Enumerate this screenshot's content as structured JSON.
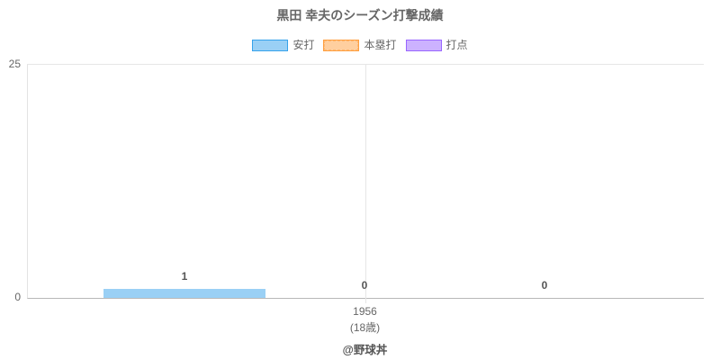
{
  "title": "黒田 幸夫のシーズン打撃成績",
  "footer": "@野球丼",
  "colors": {
    "title_text": "#666666",
    "axis_text": "#666666",
    "data_label_text": "#555555",
    "gridline": "#e6e6e6",
    "axis_line": "#b8b8b8",
    "background": "#ffffff"
  },
  "chart_data": {
    "type": "bar",
    "title": "黒田 幸夫のシーズン打撃成績",
    "categories": [
      "1956"
    ],
    "category_sublabels": [
      "(18歳)"
    ],
    "series": [
      {
        "name": "安打",
        "values": [
          1
        ],
        "fill": "#9ad0f5",
        "border": "#36a2eb",
        "border_style": "solid"
      },
      {
        "name": "本塁打",
        "values": [
          0
        ],
        "fill": "#ffcf9f",
        "border": "#ff9f40",
        "border_style": "dashed"
      },
      {
        "name": "打点",
        "values": [
          0
        ],
        "fill": "#ccb2ff",
        "border": "#9966ff",
        "border_style": "solid"
      }
    ],
    "ylim": [
      0,
      25
    ],
    "y_tick_labels": [
      "25",
      "0"
    ],
    "xlabel": "",
    "ylabel": "",
    "legend_position": "top",
    "grid": "top-line and single vertical category line only",
    "data_labels": true,
    "annotation": "@野球丼"
  }
}
